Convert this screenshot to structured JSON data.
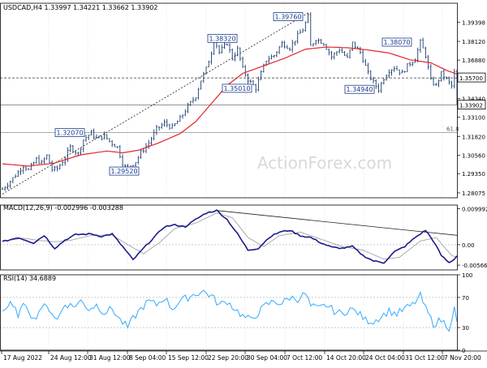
{
  "chart_data": {
    "type": "line",
    "colors": {
      "price": "#1a3b6e",
      "ma": "#e0262d",
      "macd": "#1a1a8c",
      "signal": "#aaaaaa",
      "rsi": "#33aaff",
      "grid": "#d4d4d4"
    },
    "x_ticks": [
      "17 Aug 2022",
      "24 Aug 12:00",
      "31 Aug 12:00",
      "8 Sep 04:00",
      "15 Sep 12:00",
      "22 Sep 20:00",
      "30 Sep 04:00",
      "7 Oct 12:00",
      "14 Oct 20:00",
      "24 Oct 04:00",
      "31 Oct 12:00",
      "7 Nov 20:00"
    ],
    "main": {
      "header": "USDCAD,H4  1.33997 1.34221 1.33662 1.33902",
      "watermark": "ActionForex.com",
      "ylim": [
        1.2775,
        1.4065
      ],
      "yticks": [
        1.39398,
        1.3812,
        1.3688,
        1.357,
        1.3434,
        1.331,
        1.3182,
        1.3056,
        1.2935,
        1.28075
      ],
      "ytick_labels": [
        "1.39398",
        "1.38120",
        "1.36880",
        "1.35700",
        "1.34340",
        "1.33100",
        "1.31820",
        "1.30560",
        "1.29350",
        "1.28075"
      ],
      "current_price": "1.33902",
      "level_1_3570": "1.35700",
      "fib_label": "61.8",
      "annotations": [
        "1.32070",
        "1.29520",
        "1.38320",
        "1.35010",
        "1.39760",
        "1.34940",
        "1.38070"
      ],
      "price_keys": [
        [
          0,
          1.2833
        ],
        [
          3,
          1.2885
        ],
        [
          6,
          1.2945
        ],
        [
          8,
          1.299
        ],
        [
          10,
          1.2958
        ],
        [
          13,
          1.303
        ],
        [
          15,
          1.3005
        ],
        [
          17,
          1.3055
        ],
        [
          19,
          1.2963
        ],
        [
          21,
          1.2968
        ],
        [
          24,
          1.304
        ],
        [
          26,
          1.311
        ],
        [
          29,
          1.3065
        ],
        [
          31,
          1.316
        ],
        [
          34,
          1.3207
        ],
        [
          36,
          1.3168
        ],
        [
          39,
          1.3185
        ],
        [
          41,
          1.315
        ],
        [
          44,
          1.311
        ],
        [
          46,
          1.3005
        ],
        [
          48,
          1.2952
        ],
        [
          49,
          1.299
        ],
        [
          51,
          1.3015
        ],
        [
          53,
          1.3075
        ],
        [
          56,
          1.314
        ],
        [
          59,
          1.323
        ],
        [
          62,
          1.327
        ],
        [
          65,
          1.324
        ],
        [
          68,
          1.33
        ],
        [
          71,
          1.338
        ],
        [
          74,
          1.345
        ],
        [
          76,
          1.3555
        ],
        [
          78,
          1.363
        ],
        [
          80,
          1.374
        ],
        [
          81,
          1.3832
        ],
        [
          83,
          1.374
        ],
        [
          86,
          1.38
        ],
        [
          88,
          1.37
        ],
        [
          90,
          1.376
        ],
        [
          92,
          1.363
        ],
        [
          94,
          1.356
        ],
        [
          96,
          1.352
        ],
        [
          97,
          1.3501
        ],
        [
          99,
          1.36
        ],
        [
          101,
          1.369
        ],
        [
          104,
          1.372
        ],
        [
          107,
          1.38
        ],
        [
          110,
          1.377
        ],
        [
          113,
          1.385
        ],
        [
          115,
          1.389
        ],
        [
          117,
          1.3976
        ],
        [
          118,
          1.378
        ],
        [
          120,
          1.383
        ],
        [
          123,
          1.38
        ],
        [
          126,
          1.371
        ],
        [
          129,
          1.376
        ],
        [
          132,
          1.37
        ],
        [
          134,
          1.38
        ],
        [
          137,
          1.374
        ],
        [
          140,
          1.36
        ],
        [
          142,
          1.354
        ],
        [
          144,
          1.3494
        ],
        [
          146,
          1.357
        ],
        [
          148,
          1.362
        ],
        [
          150,
          1.364
        ],
        [
          153,
          1.36
        ],
        [
          155,
          1.365
        ],
        [
          158,
          1.37
        ],
        [
          160,
          1.3807
        ],
        [
          162,
          1.372
        ],
        [
          164,
          1.355
        ],
        [
          166,
          1.352
        ],
        [
          168,
          1.36
        ],
        [
          170,
          1.356
        ],
        [
          172,
          1.3515
        ],
        [
          173,
          1.3605
        ],
        [
          174,
          1.339
        ]
      ],
      "ma_keys": [
        [
          0,
          1.3
        ],
        [
          10,
          1.2985
        ],
        [
          20,
          1.3005
        ],
        [
          30,
          1.306
        ],
        [
          40,
          1.3085
        ],
        [
          46,
          1.3073
        ],
        [
          52,
          1.309
        ],
        [
          60,
          1.314
        ],
        [
          68,
          1.32
        ],
        [
          74,
          1.328
        ],
        [
          80,
          1.34
        ],
        [
          86,
          1.352
        ],
        [
          92,
          1.36
        ],
        [
          100,
          1.365
        ],
        [
          108,
          1.37
        ],
        [
          116,
          1.376
        ],
        [
          124,
          1.3775
        ],
        [
          132,
          1.377
        ],
        [
          140,
          1.3755
        ],
        [
          148,
          1.3735
        ],
        [
          156,
          1.369
        ],
        [
          164,
          1.367
        ],
        [
          170,
          1.362
        ],
        [
          174,
          1.3595
        ]
      ],
      "trend_start": [
        0,
        1.28
      ],
      "trend_end": [
        117,
        1.4
      ]
    },
    "macd": {
      "header": "MACD(12,26,9) -0.002996 -0.003288",
      "ylim": [
        -0.007,
        0.011
      ],
      "yticks": [
        0.009992,
        0.0,
        -0.005668
      ],
      "ytick_labels": [
        "0.009992",
        "0.00",
        "-0.005668"
      ],
      "macd_keys": [
        [
          0,
          0.0008
        ],
        [
          6,
          0.002
        ],
        [
          12,
          0.0005
        ],
        [
          16,
          0.0026
        ],
        [
          20,
          -0.001
        ],
        [
          24,
          0.0013
        ],
        [
          28,
          0.0028
        ],
        [
          34,
          0.003
        ],
        [
          38,
          0.0023
        ],
        [
          42,
          0.003
        ],
        [
          46,
          -0.0005
        ],
        [
          50,
          -0.0042
        ],
        [
          54,
          -0.001
        ],
        [
          58,
          0.002
        ],
        [
          62,
          0.005
        ],
        [
          66,
          0.0055
        ],
        [
          70,
          0.005
        ],
        [
          74,
          0.007
        ],
        [
          78,
          0.0088
        ],
        [
          82,
          0.0095
        ],
        [
          86,
          0.007
        ],
        [
          90,
          0.003
        ],
        [
          94,
          -0.0015
        ],
        [
          98,
          -0.001
        ],
        [
          102,
          0.002
        ],
        [
          106,
          0.0035
        ],
        [
          110,
          0.004
        ],
        [
          114,
          0.0025
        ],
        [
          118,
          0.002
        ],
        [
          122,
          0.0005
        ],
        [
          126,
          -0.0007
        ],
        [
          130,
          -0.001
        ],
        [
          134,
          -0.0005
        ],
        [
          138,
          -0.003
        ],
        [
          142,
          -0.0045
        ],
        [
          146,
          -0.005
        ],
        [
          150,
          -0.002
        ],
        [
          154,
          -0.0005
        ],
        [
          158,
          0.002
        ],
        [
          162,
          0.004
        ],
        [
          165,
          0.001
        ],
        [
          168,
          -0.003
        ],
        [
          171,
          -0.005
        ],
        [
          173,
          -0.004
        ],
        [
          174,
          -0.003
        ]
      ],
      "sig_keys": [
        [
          0,
          0.001
        ],
        [
          8,
          0.0018
        ],
        [
          14,
          0.0012
        ],
        [
          20,
          0.0008
        ],
        [
          26,
          0.0012
        ],
        [
          34,
          0.0026
        ],
        [
          42,
          0.0027
        ],
        [
          48,
          0.0
        ],
        [
          54,
          -0.0025
        ],
        [
          60,
          0.0005
        ],
        [
          66,
          0.0045
        ],
        [
          74,
          0.006
        ],
        [
          82,
          0.0088
        ],
        [
          88,
          0.0075
        ],
        [
          94,
          0.002
        ],
        [
          100,
          -0.0005
        ],
        [
          106,
          0.0025
        ],
        [
          114,
          0.0035
        ],
        [
          122,
          0.0015
        ],
        [
          130,
          -0.0005
        ],
        [
          138,
          -0.0015
        ],
        [
          146,
          -0.004
        ],
        [
          152,
          -0.0035
        ],
        [
          160,
          0.001
        ],
        [
          166,
          0.002
        ],
        [
          172,
          -0.003
        ],
        [
          174,
          -0.0035
        ]
      ],
      "div_start": [
        82,
        0.0095
      ],
      "div_end": [
        174,
        0.0026
      ]
    },
    "rsi": {
      "header": "RSI(14) 34.6889",
      "ylim": [
        0,
        100
      ],
      "yticks": [
        100,
        70,
        30,
        0
      ],
      "ytick_labels": [
        "100",
        "70",
        "30",
        "0"
      ],
      "levels": [
        70,
        30
      ],
      "rsi_keys": [
        [
          0,
          52
        ],
        [
          3,
          60
        ],
        [
          6,
          48
        ],
        [
          9,
          62
        ],
        [
          12,
          40
        ],
        [
          15,
          58
        ],
        [
          18,
          55
        ],
        [
          21,
          40
        ],
        [
          24,
          62
        ],
        [
          27,
          58
        ],
        [
          30,
          65
        ],
        [
          33,
          55
        ],
        [
          36,
          60
        ],
        [
          39,
          50
        ],
        [
          42,
          55
        ],
        [
          45,
          40
        ],
        [
          48,
          30
        ],
        [
          50,
          42
        ],
        [
          53,
          55
        ],
        [
          56,
          65
        ],
        [
          59,
          60
        ],
        [
          62,
          70
        ],
        [
          65,
          55
        ],
        [
          68,
          65
        ],
        [
          71,
          70
        ],
        [
          74,
          75
        ],
        [
          77,
          78
        ],
        [
          80,
          72
        ],
        [
          83,
          60
        ],
        [
          86,
          65
        ],
        [
          89,
          55
        ],
        [
          92,
          45
        ],
        [
          95,
          40
        ],
        [
          98,
          50
        ],
        [
          101,
          60
        ],
        [
          104,
          65
        ],
        [
          107,
          62
        ],
        [
          110,
          70
        ],
        [
          113,
          68
        ],
        [
          116,
          75
        ],
        [
          118,
          58
        ],
        [
          121,
          55
        ],
        [
          124,
          60
        ],
        [
          127,
          52
        ],
        [
          130,
          48
        ],
        [
          133,
          55
        ],
        [
          136,
          50
        ],
        [
          139,
          40
        ],
        [
          142,
          38
        ],
        [
          145,
          45
        ],
        [
          148,
          52
        ],
        [
          151,
          48
        ],
        [
          154,
          55
        ],
        [
          157,
          60
        ],
        [
          160,
          72
        ],
        [
          162,
          55
        ],
        [
          165,
          35
        ],
        [
          168,
          40
        ],
        [
          171,
          30
        ],
        [
          173,
          55
        ],
        [
          174,
          35
        ]
      ]
    }
  }
}
